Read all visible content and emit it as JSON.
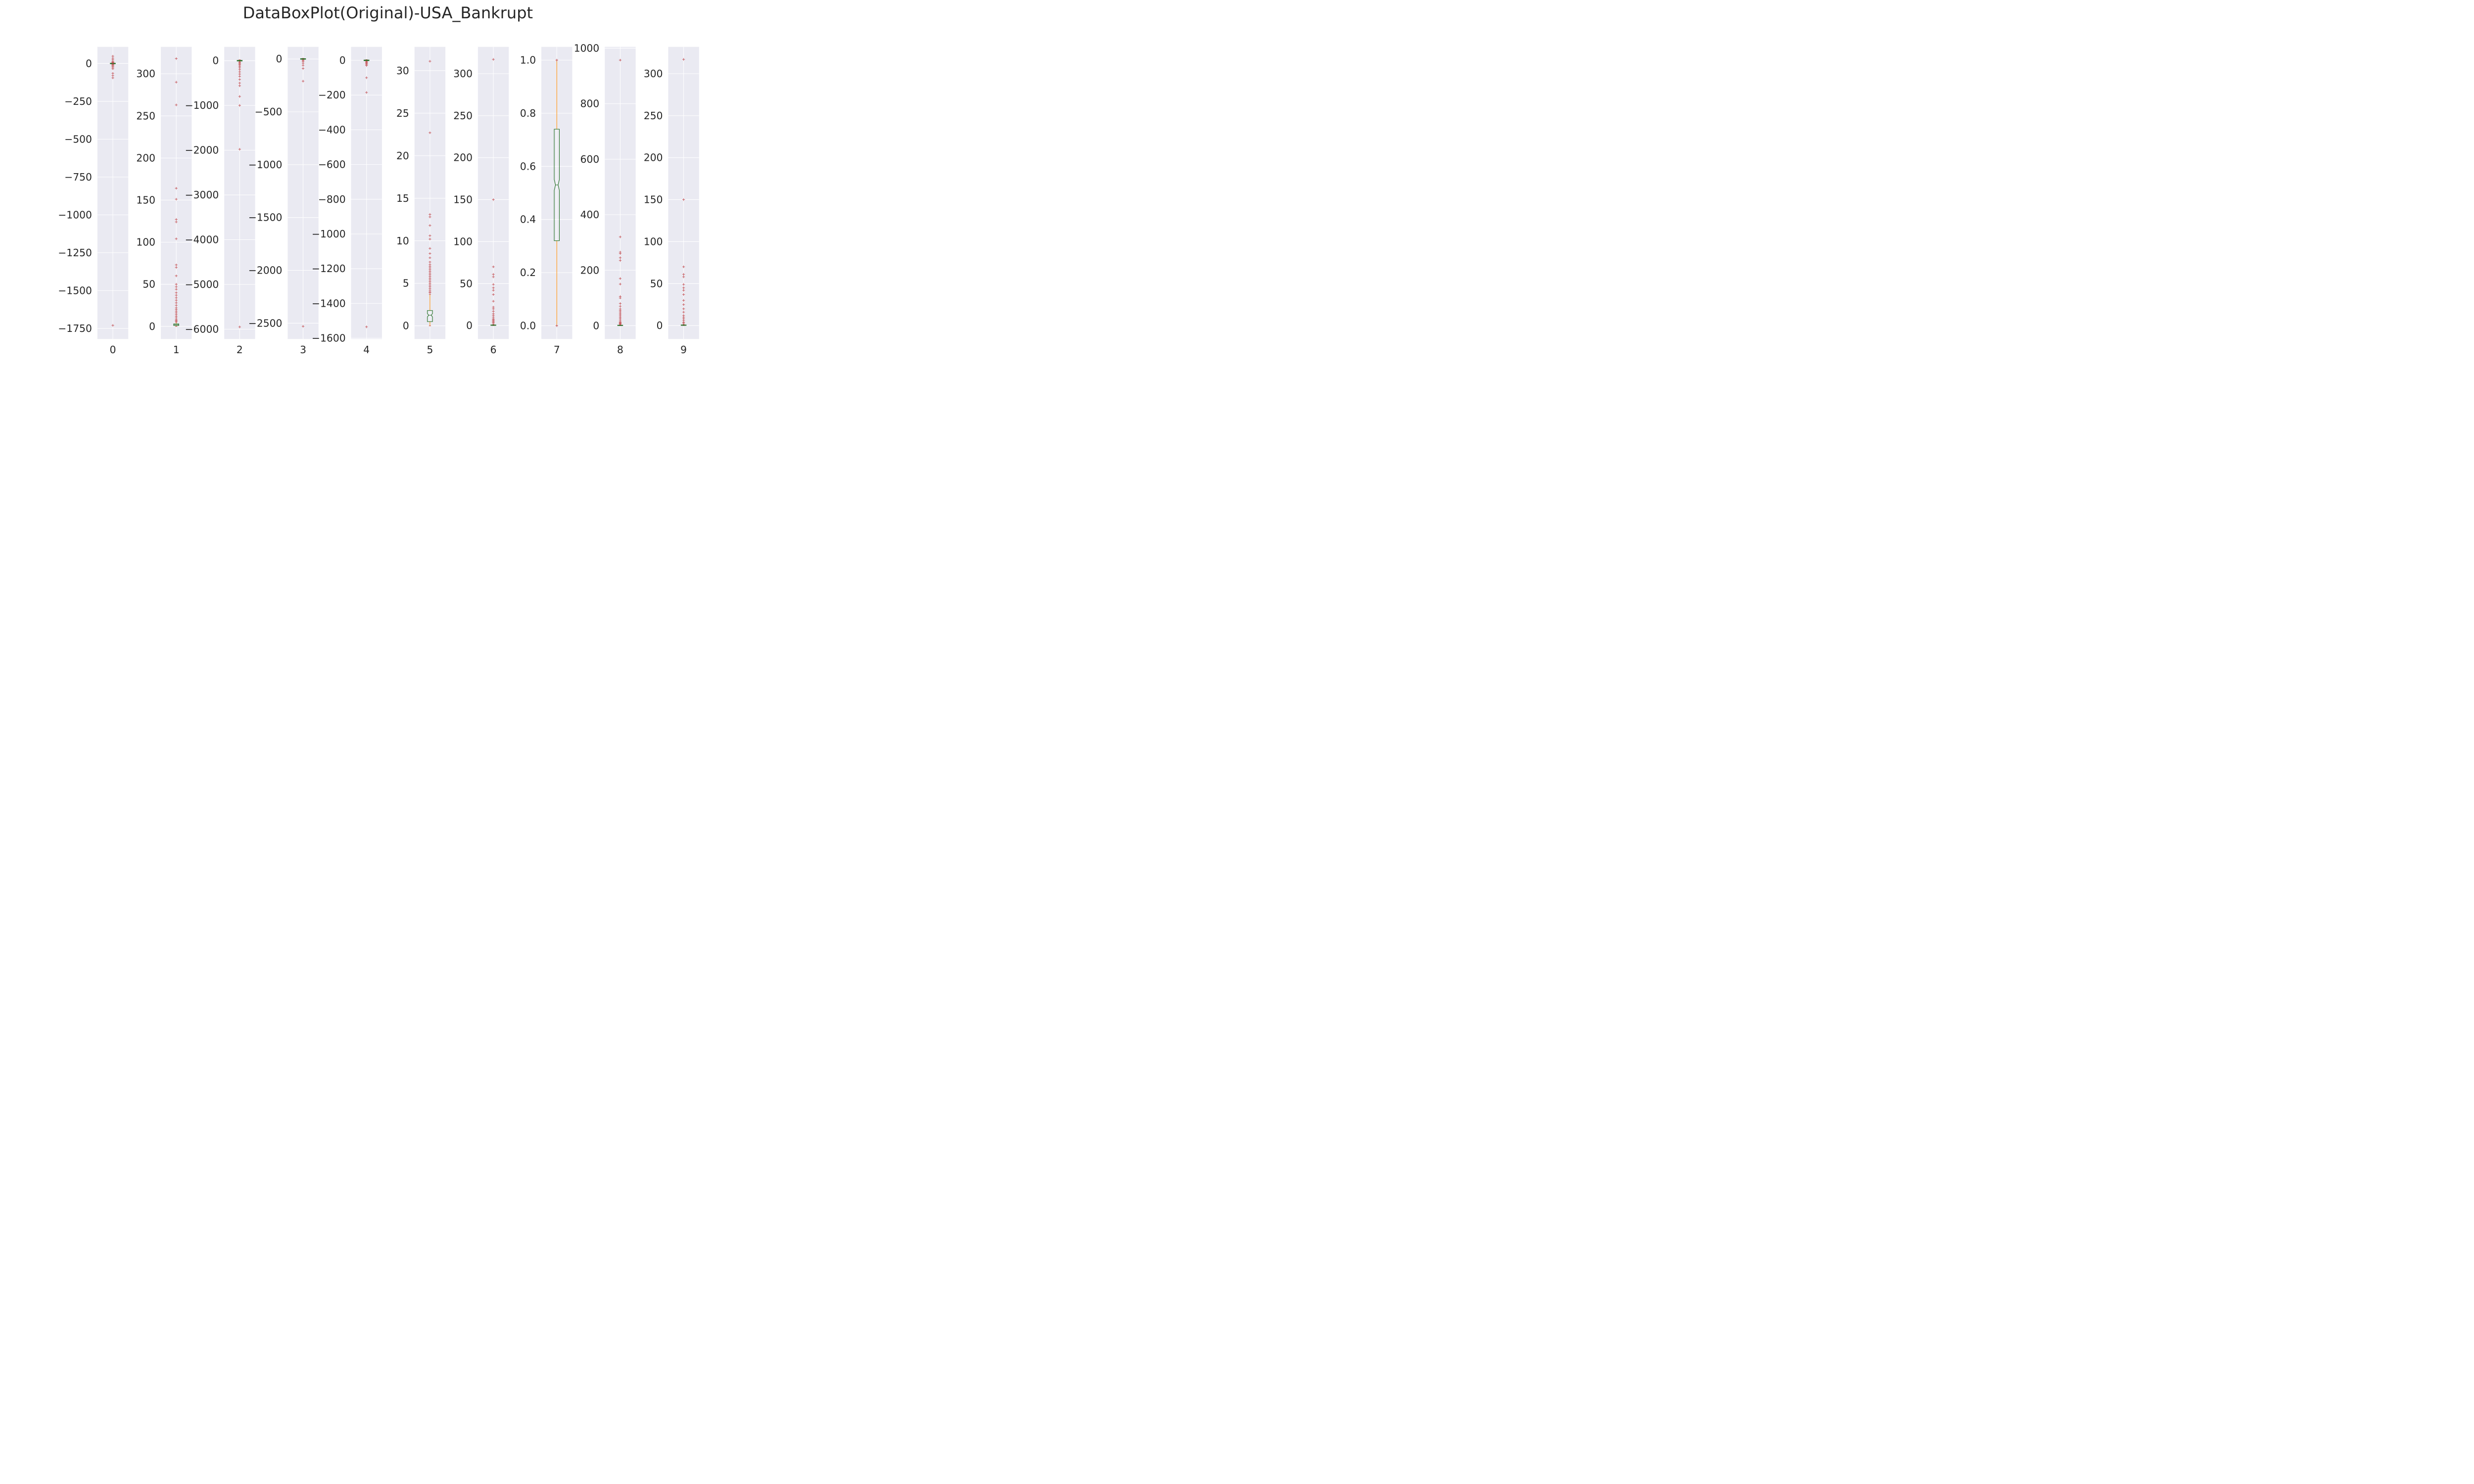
{
  "figure": {
    "title": "DataBoxPlot(Original)-USA_Bankrupt",
    "background": "#ffffff",
    "panel_background": "#eaeaf2",
    "grid_color": "#ffffff",
    "box_color": "#1a6b1a",
    "median_color": "#2f6f2f",
    "whisker_color": "#ff8c00",
    "flier_color": "#c44e52",
    "flier_marker": "+"
  },
  "chart_data": [
    {
      "type": "box",
      "x_tick": "0",
      "ylim": [
        -1820,
        110
      ],
      "yticks": [
        0,
        -250,
        -500,
        -750,
        -1000,
        -1250,
        -1500,
        -1750
      ],
      "ytick_labels": [
        "0",
        "−250",
        "−500",
        "−750",
        "−1000",
        "−1250",
        "−1500",
        "−1750"
      ],
      "box": {
        "q1": -2,
        "median": 0,
        "q3": 2,
        "whisker_low": -5,
        "whisker_high": 5
      },
      "fliers": [
        48,
        35,
        25,
        15,
        10,
        6,
        4,
        -6,
        -10,
        -15,
        -20,
        -28,
        -35,
        -65,
        -80,
        -95,
        -1730
      ]
    },
    {
      "type": "box",
      "x_tick": "1",
      "ylim": [
        -15,
        332
      ],
      "yticks": [
        0,
        50,
        100,
        150,
        200,
        250,
        300
      ],
      "ytick_labels": [
        "0",
        "50",
        "100",
        "150",
        "200",
        "250",
        "300"
      ],
      "box": {
        "q1": 1,
        "median": 2,
        "q3": 3,
        "whisker_low": 0,
        "whisker_high": 5
      },
      "fliers": [
        318,
        290,
        263,
        164,
        151,
        127,
        124,
        104,
        73,
        70,
        60,
        50,
        47,
        44,
        40,
        37,
        34,
        31,
        28,
        25,
        22,
        20,
        18,
        16,
        14,
        12,
        10,
        8,
        7,
        6
      ]
    },
    {
      "type": "box",
      "x_tick": "2",
      "ylim": [
        -6220,
        310
      ],
      "yticks": [
        0,
        -1000,
        -2000,
        -3000,
        -4000,
        -5000,
        -6000
      ],
      "ytick_labels": [
        "0",
        "−1000",
        "−2000",
        "−3000",
        "−4000",
        "−5000",
        "−6000"
      ],
      "box": {
        "q1": -8,
        "median": 0,
        "q3": 8,
        "whisker_low": -25,
        "whisker_high": 20
      },
      "fliers": [
        -40,
        -60,
        -80,
        -100,
        -130,
        -160,
        -200,
        -250,
        -300,
        -350,
        -420,
        -500,
        -560,
        -800,
        -1000,
        -1980,
        -5950
      ]
    },
    {
      "type": "box",
      "x_tick": "3",
      "ylim": [
        -2650,
        115
      ],
      "yticks": [
        0,
        -500,
        -1000,
        -1500,
        -2000,
        -2500
      ],
      "ytick_labels": [
        "0",
        "−500",
        "−1000",
        "−1500",
        "−2000",
        "−2500"
      ],
      "box": {
        "q1": -3,
        "median": 0,
        "q3": 3,
        "whisker_low": -8,
        "whisker_high": 6
      },
      "fliers": [
        -15,
        -25,
        -40,
        -60,
        -90,
        -210,
        -2530
      ]
    },
    {
      "type": "box",
      "x_tick": "4",
      "ylim": [
        -1605,
        78
      ],
      "yticks": [
        0,
        -200,
        -400,
        -600,
        -800,
        -1000,
        -1200,
        -1400,
        -1600
      ],
      "ytick_labels": [
        "0",
        "−200",
        "−400",
        "−600",
        "−800",
        "−1000",
        "−1200",
        "−1400",
        "−1600"
      ],
      "box": {
        "q1": -2,
        "median": 0,
        "q3": 2,
        "whisker_low": -5,
        "whisker_high": 4
      },
      "fliers": [
        -8,
        -12,
        -16,
        -20,
        -25,
        -30,
        -100,
        -185,
        -1535
      ]
    },
    {
      "type": "box",
      "x_tick": "5",
      "ylim": [
        -1.55,
        32.8
      ],
      "yticks": [
        0,
        5,
        10,
        15,
        20,
        25,
        30
      ],
      "ytick_labels": [
        "0",
        "5",
        "10",
        "15",
        "20",
        "25",
        "30"
      ],
      "box": {
        "q1": 0.5,
        "median": 1.25,
        "q3": 1.8,
        "notch_low": 1.05,
        "notch_high": 1.45,
        "whisker_low": 0.0,
        "whisker_high": 3.7
      },
      "fliers": [
        31.1,
        22.7,
        13.1,
        12.8,
        11.8,
        10.6,
        10.2,
        9.1,
        8.5,
        8.0,
        7.5,
        7.2,
        7.0,
        6.8,
        6.6,
        6.4,
        6.2,
        6.0,
        5.8,
        5.6,
        5.4,
        5.2,
        5.0,
        4.8,
        4.6,
        4.4,
        4.2,
        4.0,
        3.9
      ]
    },
    {
      "type": "box",
      "x_tick": "6",
      "ylim": [
        -16,
        332
      ],
      "yticks": [
        0,
        50,
        100,
        150,
        200,
        250,
        300
      ],
      "ytick_labels": [
        "0",
        "50",
        "100",
        "150",
        "200",
        "250",
        "300"
      ],
      "box": {
        "q1": 0.2,
        "median": 0.5,
        "q3": 0.8,
        "whisker_low": 0,
        "whisker_high": 1.5
      },
      "fliers": [
        317,
        150,
        70,
        61,
        58,
        49,
        45,
        42,
        37,
        29,
        22,
        20,
        17,
        14,
        12,
        10,
        8,
        7,
        6,
        5,
        4,
        3
      ]
    },
    {
      "type": "box",
      "x_tick": "7",
      "ylim": [
        -0.05,
        1.05
      ],
      "yticks": [
        0.0,
        0.2,
        0.4,
        0.6,
        0.8,
        1.0
      ],
      "ytick_labels": [
        "0.0",
        "0.2",
        "0.4",
        "0.6",
        "0.8",
        "1.0"
      ],
      "box": {
        "q1": 0.32,
        "median": 0.53,
        "q3": 0.74,
        "notch_low": 0.51,
        "notch_high": 0.55,
        "whisker_low": 0.0,
        "whisker_high": 1.0
      },
      "fliers": [
        1.0,
        0.0
      ]
    },
    {
      "type": "box",
      "x_tick": "8",
      "ylim": [
        -48,
        1005
      ],
      "yticks": [
        0,
        200,
        400,
        600,
        800,
        1000
      ],
      "ytick_labels": [
        "0",
        "200",
        "400",
        "600",
        "800",
        "1000"
      ],
      "box": {
        "q1": 0.3,
        "median": 1,
        "q3": 2,
        "whisker_low": 0,
        "whisker_high": 4
      },
      "fliers": [
        957,
        320,
        265,
        260,
        245,
        235,
        170,
        150,
        105,
        100,
        80,
        70,
        60,
        55,
        50,
        45,
        40,
        35,
        30,
        25,
        20,
        15,
        12,
        10,
        8,
        6
      ]
    },
    {
      "type": "box",
      "x_tick": "9",
      "ylim": [
        -16,
        332
      ],
      "yticks": [
        0,
        50,
        100,
        150,
        200,
        250,
        300
      ],
      "ytick_labels": [
        "0",
        "50",
        "100",
        "150",
        "200",
        "250",
        "300"
      ],
      "box": {
        "q1": 0.2,
        "median": 0.5,
        "q3": 0.8,
        "whisker_low": 0,
        "whisker_high": 1.5
      },
      "fliers": [
        317,
        150,
        70,
        61,
        58,
        49,
        45,
        42,
        37,
        30,
        25,
        20,
        16,
        12,
        10,
        8,
        6,
        4,
        3
      ]
    }
  ]
}
